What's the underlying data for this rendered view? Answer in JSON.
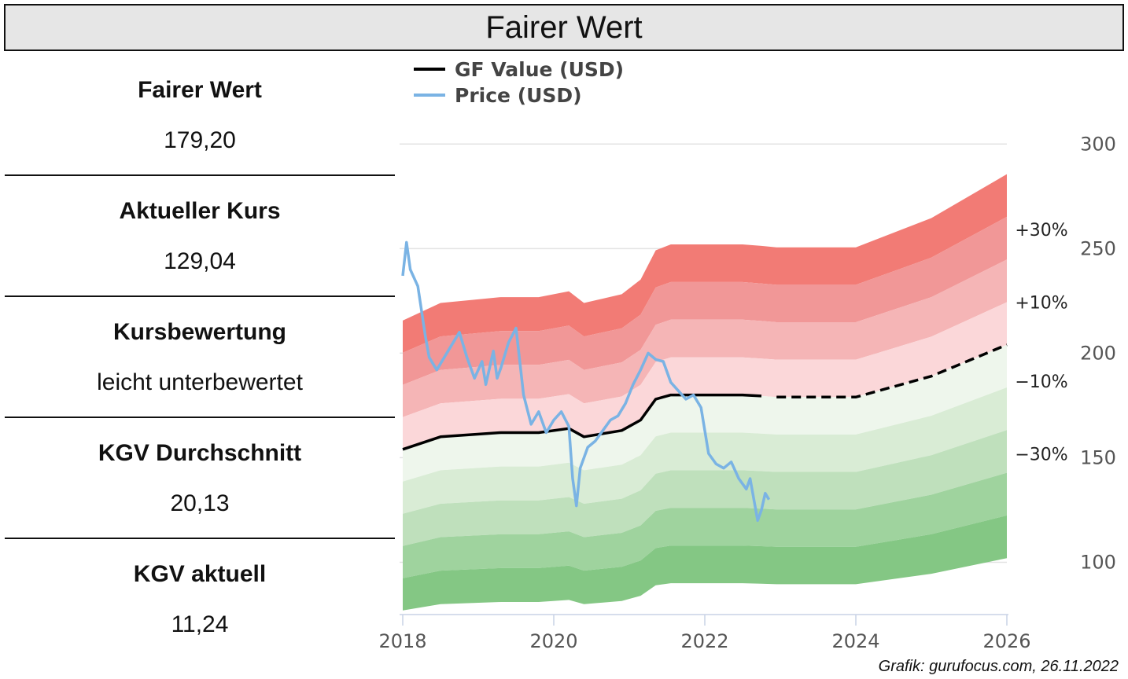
{
  "header": {
    "title": "Fairer Wert"
  },
  "metrics": [
    {
      "label": "Fairer Wert",
      "value": "179,20"
    },
    {
      "label": "Aktueller Kurs",
      "value": "129,04"
    },
    {
      "label": "Kursbewertung",
      "value": "leicht unterbewertet"
    },
    {
      "label": "KGV Durchschnitt",
      "value": "20,13"
    },
    {
      "label": "KGV aktuell",
      "value": "11,24"
    }
  ],
  "source": "Grafik: gurufocus.com, 26.11.2022",
  "chart_data": {
    "type": "line",
    "legend_position": "top-left",
    "ylim": [
      75,
      305
    ],
    "xlim": [
      2018,
      2026
    ],
    "x_ticks": [
      "2018",
      "2020",
      "2022",
      "2024",
      "2026"
    ],
    "y_ticks": [
      "100",
      "150",
      "200",
      "250",
      "300"
    ],
    "band_labels": [
      "+30%",
      "+10%",
      "-10%",
      "-30%"
    ],
    "series": [
      {
        "name": "GF Value (USD)",
        "color": "#000000",
        "points": [
          [
            2018.0,
            154
          ],
          [
            2018.5,
            160
          ],
          [
            2019.3,
            162
          ],
          [
            2019.8,
            162
          ],
          [
            2020.2,
            164
          ],
          [
            2020.4,
            160
          ],
          [
            2020.9,
            163
          ],
          [
            2021.15,
            168
          ],
          [
            2021.35,
            178
          ],
          [
            2021.55,
            180
          ],
          [
            2022.0,
            180
          ],
          [
            2022.5,
            180
          ],
          [
            2022.75,
            179.5
          ]
        ],
        "forecast": [
          [
            2022.95,
            179
          ],
          [
            2023.4,
            179
          ],
          [
            2024.0,
            179
          ],
          [
            2025.0,
            189
          ],
          [
            2026.0,
            204
          ]
        ]
      },
      {
        "name": "Price (USD)",
        "color": "#7ab3e4",
        "points": [
          [
            2018.0,
            237
          ],
          [
            2018.05,
            253
          ],
          [
            2018.1,
            240
          ],
          [
            2018.2,
            232
          ],
          [
            2018.3,
            208
          ],
          [
            2018.35,
            198
          ],
          [
            2018.45,
            192
          ],
          [
            2018.55,
            198
          ],
          [
            2018.65,
            204
          ],
          [
            2018.75,
            210
          ],
          [
            2018.85,
            198
          ],
          [
            2018.95,
            188
          ],
          [
            2019.05,
            196
          ],
          [
            2019.1,
            185
          ],
          [
            2019.2,
            201
          ],
          [
            2019.25,
            188
          ],
          [
            2019.3,
            193
          ],
          [
            2019.4,
            205
          ],
          [
            2019.5,
            212
          ],
          [
            2019.55,
            196
          ],
          [
            2019.6,
            180
          ],
          [
            2019.7,
            166
          ],
          [
            2019.8,
            172
          ],
          [
            2019.9,
            162
          ],
          [
            2020.0,
            168
          ],
          [
            2020.1,
            172
          ],
          [
            2020.2,
            165
          ],
          [
            2020.25,
            140
          ],
          [
            2020.3,
            127
          ],
          [
            2020.35,
            145
          ],
          [
            2020.45,
            155
          ],
          [
            2020.55,
            158
          ],
          [
            2020.65,
            163
          ],
          [
            2020.75,
            168
          ],
          [
            2020.85,
            170
          ],
          [
            2020.95,
            176
          ],
          [
            2021.05,
            185
          ],
          [
            2021.15,
            192
          ],
          [
            2021.25,
            200
          ],
          [
            2021.35,
            197
          ],
          [
            2021.45,
            196
          ],
          [
            2021.55,
            186
          ],
          [
            2021.65,
            182
          ],
          [
            2021.75,
            178
          ],
          [
            2021.85,
            180
          ],
          [
            2021.95,
            174
          ],
          [
            2022.05,
            152
          ],
          [
            2022.15,
            147
          ],
          [
            2022.25,
            145
          ],
          [
            2022.35,
            148
          ],
          [
            2022.45,
            140
          ],
          [
            2022.55,
            135
          ],
          [
            2022.6,
            140
          ],
          [
            2022.65,
            130
          ],
          [
            2022.7,
            120
          ],
          [
            2022.75,
            125
          ],
          [
            2022.8,
            133
          ],
          [
            2022.85,
            130
          ]
        ]
      }
    ],
    "bands": [
      {
        "name": "+30%",
        "color": "#f27b75"
      },
      {
        "name": "+20%",
        "color": "#f19797"
      },
      {
        "name": "+10%",
        "color": "#f5b5b6"
      },
      {
        "name": "0%",
        "color": "#fbd7d9"
      },
      {
        "name": "-0%",
        "color": "#eef6ec"
      },
      {
        "name": "-10%",
        "color": "#d9ecd5"
      },
      {
        "name": "-20%",
        "color": "#bfe0bc"
      },
      {
        "name": "-30%",
        "color": "#9fd39e"
      },
      {
        "name": "-40%",
        "color": "#84c784"
      }
    ]
  }
}
